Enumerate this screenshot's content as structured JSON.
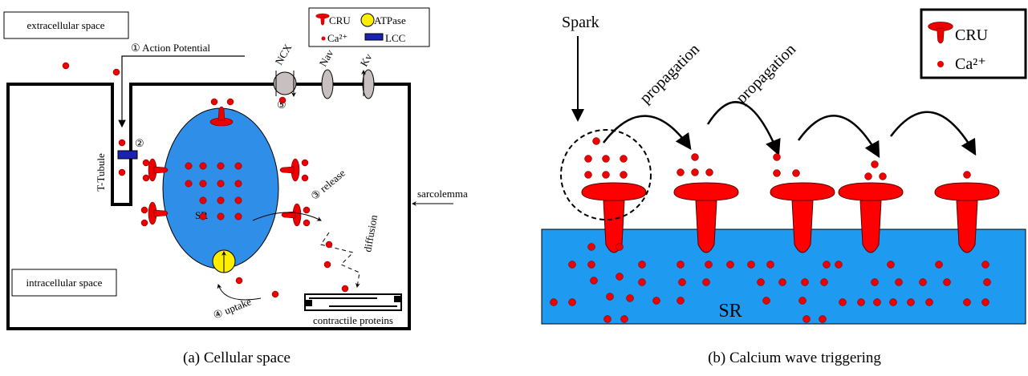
{
  "panel_a": {
    "caption": "(a) Cellular space",
    "extracellular": "extracellular space",
    "intracellular": "intracellular space",
    "action_potential": "① Action Potential",
    "lcc_step": "②",
    "t_tubule": "T-Tubule",
    "sr": "SR",
    "release": "③ release",
    "diffusion": "diffusion",
    "uptake": "④ uptake",
    "ncx_step": "⑤",
    "ncx": "NCX",
    "nav": "Nav",
    "kv": "Kv",
    "sarcolemma": "sarcolemma",
    "contractile": "contractile proteins",
    "legend": {
      "cru": "CRU",
      "atpase": "ATPase",
      "ca": "Ca²⁺",
      "lcc": "LCC"
    }
  },
  "panel_b": {
    "caption": "(b) Calcium wave triggering",
    "spark": "Spark",
    "propagation": [
      "propagation",
      "propagation"
    ],
    "sr": "SR",
    "legend": {
      "cru": "CRU",
      "ca": "Ca²⁺"
    }
  }
}
